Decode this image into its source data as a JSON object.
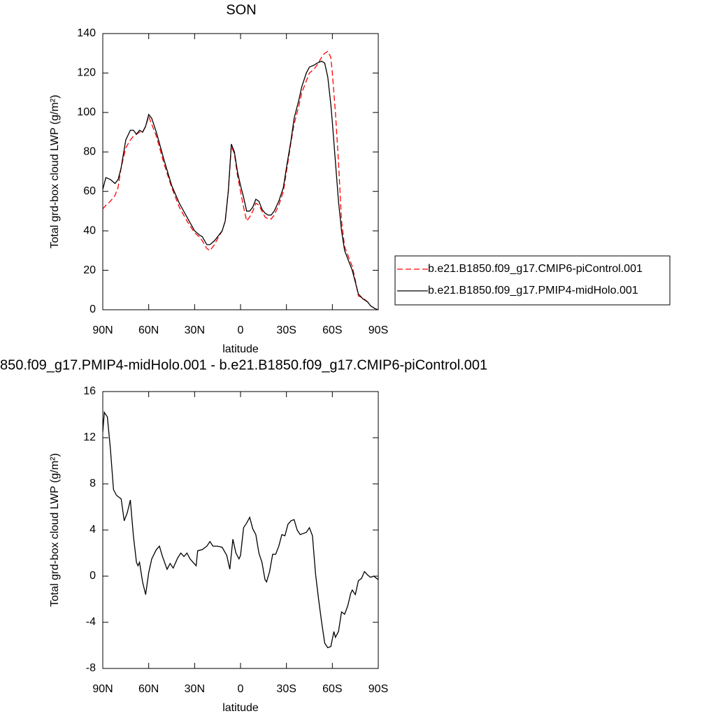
{
  "chart_data": [
    {
      "type": "line",
      "title": "SON",
      "xlabel": "latitude",
      "ylabel": "Total grd-box cloud LWP (g/m²)",
      "x": [
        90,
        88,
        85,
        82,
        80,
        78,
        75,
        72,
        70,
        68,
        66,
        64,
        62,
        60,
        58,
        55,
        50,
        45,
        40,
        35,
        30,
        27,
        25,
        22,
        20,
        17,
        15,
        12,
        10,
        8,
        6,
        4,
        2,
        0,
        -2,
        -4,
        -6,
        -8,
        -10,
        -12,
        -14,
        -16,
        -18,
        -20,
        -22,
        -25,
        -28,
        -30,
        -33,
        -35,
        -38,
        -40,
        -43,
        -45,
        -48,
        -50,
        -53,
        -55,
        -57,
        -59,
        -60,
        -62,
        -64,
        -66,
        -68,
        -70,
        -73,
        -75,
        -77,
        -80,
        -83,
        -85,
        -88,
        -90
      ],
      "series": [
        {
          "name": "b.e21.B1850.f09_g17.CMIP6-piControl.001",
          "color": "#ff0000",
          "dash": true,
          "values": [
            51,
            53,
            55,
            58,
            62,
            72,
            82,
            86,
            88,
            89,
            90,
            90,
            93,
            98,
            94,
            88,
            74,
            62,
            52,
            45,
            39,
            37,
            35,
            31,
            30,
            33,
            36,
            40,
            45,
            60,
            83,
            79,
            68,
            60,
            52,
            45,
            47,
            50,
            54,
            53,
            50,
            47,
            46,
            46,
            48,
            53,
            60,
            70,
            85,
            94,
            103,
            110,
            116,
            120,
            122,
            124,
            128,
            130,
            131,
            128,
            120,
            100,
            75,
            45,
            32,
            28,
            22,
            15,
            7,
            6,
            4,
            2,
            0.5,
            0
          ]
        },
        {
          "name": "b.e21.B1850.f09_g17.PMIP4-midHolo.001",
          "color": "#000000",
          "dash": false,
          "values": [
            61,
            67,
            66,
            64,
            66,
            72,
            86,
            91,
            91,
            89,
            91,
            90,
            93,
            99,
            97,
            90,
            76,
            63,
            54,
            47,
            40,
            38,
            37,
            33,
            33,
            35,
            37,
            40,
            45,
            60,
            84,
            80,
            70,
            63,
            57,
            50,
            50,
            52,
            56,
            55,
            51,
            49,
            48,
            48,
            50,
            55,
            62,
            72,
            86,
            97,
            106,
            113,
            120,
            123,
            124,
            125,
            126,
            125,
            118,
            104,
            95,
            75,
            55,
            40,
            30,
            26,
            20,
            14,
            8,
            5.5,
            4,
            2,
            0.5,
            0
          ]
        }
      ],
      "xlim": [
        90,
        -90
      ],
      "xticks": [
        {
          "value": 90,
          "label": "90N"
        },
        {
          "value": 60,
          "label": "60N"
        },
        {
          "value": 30,
          "label": "30N"
        },
        0,
        {
          "value": -30,
          "label": "30S"
        },
        {
          "value": -60,
          "label": "60S"
        },
        {
          "value": -90,
          "label": "90S"
        }
      ],
      "ylim": [
        0,
        140
      ],
      "yticks": [
        0,
        20,
        40,
        60,
        80,
        100,
        120,
        140
      ],
      "legend": "right"
    },
    {
      "type": "line",
      "title": "850.f09_g17.PMIP4-midHolo.001 - b.e21.B1850.f09_g17.CMIP6-piControl.001",
      "xlabel": "latitude",
      "ylabel": "Total grd-box cloud LWP (g/m²)",
      "x": [
        90,
        89,
        87,
        85,
        83,
        81,
        78,
        76,
        74,
        72,
        70,
        68,
        67,
        66,
        64,
        62,
        60,
        58,
        55,
        53,
        51,
        48,
        46,
        44,
        41,
        39,
        37,
        35,
        33,
        31,
        29,
        28,
        25,
        22,
        20,
        18,
        15,
        12,
        9,
        7,
        5,
        3,
        1,
        0,
        -2,
        -4,
        -6,
        -8,
        -10,
        -12,
        -14,
        -16,
        -17,
        -19,
        -21,
        -23,
        -25,
        -27,
        -29,
        -31,
        -33,
        -35,
        -37,
        -39,
        -41,
        -43,
        -45,
        -47,
        -49,
        -51,
        -53,
        -55,
        -57,
        -59,
        -61,
        -62,
        -64,
        -66,
        -68,
        -70,
        -72,
        -73,
        -75,
        -77,
        -79,
        -81,
        -83,
        -85,
        -87,
        -90
      ],
      "series": [
        {
          "color": "#000000",
          "values": [
            12.5,
            14.2,
            13.8,
            11,
            7.5,
            7,
            6.7,
            4.8,
            5.5,
            6.6,
            3.5,
            1.2,
            0.9,
            1.2,
            -0.5,
            -1.6,
            0.3,
            1.5,
            2.3,
            2.6,
            1.7,
            0.6,
            1.1,
            0.7,
            1.6,
            2.0,
            1.7,
            2.0,
            1.5,
            1.2,
            0.9,
            2.2,
            2.3,
            2.6,
            3.0,
            2.6,
            2.6,
            2.5,
            1.8,
            0.6,
            3.2,
            2.0,
            1.5,
            1.8,
            4.2,
            4.6,
            5.1,
            4.1,
            3.6,
            2.0,
            1.2,
            -0.3,
            -0.5,
            0.4,
            1.9,
            1.9,
            2.6,
            3.6,
            3.5,
            4.5,
            4.8,
            4.9,
            4.0,
            3.6,
            3.7,
            3.8,
            4.2,
            3.5,
            0.2,
            -2,
            -4,
            -5.8,
            -6.2,
            -6.1,
            -4.8,
            -5.3,
            -4.8,
            -3.1,
            -3.3,
            -2.6,
            -1.5,
            -1.2,
            -1.6,
            -0.4,
            -0.2,
            0.4,
            0.1,
            -0.1,
            0,
            -0.3
          ]
        }
      ],
      "xlim": [
        90,
        -90
      ],
      "xticks": [
        {
          "value": 90,
          "label": "90N"
        },
        {
          "value": 60,
          "label": "60N"
        },
        {
          "value": 30,
          "label": "30N"
        },
        0,
        {
          "value": -30,
          "label": "30S"
        },
        {
          "value": -60,
          "label": "60S"
        },
        {
          "value": -90,
          "label": "90S"
        }
      ],
      "ylim": [
        -8,
        16
      ],
      "yticks": [
        -8,
        -4,
        0,
        4,
        8,
        12,
        16
      ]
    }
  ]
}
